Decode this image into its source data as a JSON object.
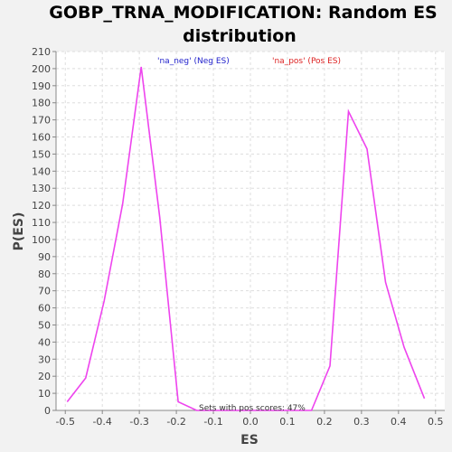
{
  "chart_data": {
    "type": "line",
    "title_line1": "GOBP_TRNA_MODIFICATION: Random ES",
    "title_line2": "distribution",
    "xlabel": "ES",
    "ylabel": "P(ES)",
    "xlim": [
      -0.525,
      0.525
    ],
    "ylim": [
      0,
      210
    ],
    "xticks": [
      -0.5,
      -0.4,
      -0.3,
      -0.2,
      -0.1,
      0.0,
      0.1,
      0.2,
      0.3,
      0.4,
      0.5
    ],
    "xtick_labels": [
      "-0.5",
      "-0.4",
      "-0.3",
      "-0.2",
      "-0.1",
      "0.0",
      "0.1",
      "0.2",
      "0.3",
      "0.4",
      "0.5"
    ],
    "yticks": [
      0,
      10,
      20,
      30,
      40,
      50,
      60,
      70,
      80,
      90,
      100,
      110,
      120,
      130,
      140,
      150,
      160,
      170,
      180,
      190,
      200,
      210
    ],
    "grid": true,
    "line_color": "#ee44ee",
    "x": [
      -0.495,
      -0.445,
      -0.395,
      -0.345,
      -0.295,
      -0.245,
      -0.195,
      -0.145,
      -0.095,
      -0.045,
      0.005,
      0.055,
      0.105,
      0.165,
      0.215,
      0.265,
      0.315,
      0.365,
      0.415,
      0.47
    ],
    "values": [
      5,
      19,
      64,
      121,
      201,
      113,
      5,
      0,
      0,
      0,
      0,
      0,
      0,
      0,
      26,
      175,
      153,
      75,
      37,
      7
    ],
    "legend": [
      {
        "label": "'na_neg' (Neg ES)",
        "color": "#2222cc"
      },
      {
        "label": "'na_pos' (Pos ES)",
        "color": "#dd2222"
      }
    ],
    "annotation": "Sets with pos scores: 47%"
  }
}
